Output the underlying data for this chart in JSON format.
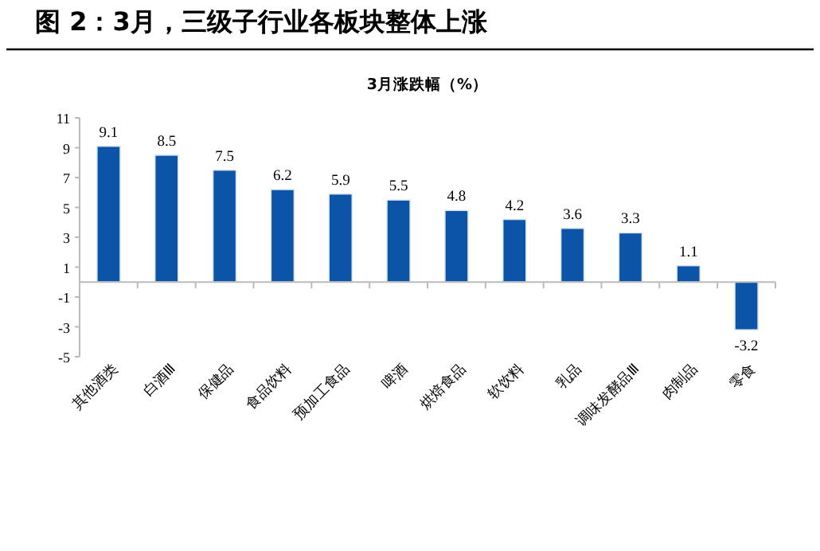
{
  "chart_data": {
    "type": "bar",
    "title": "图 2：3月，三级子行业各板块整体上涨",
    "subtitle": "3月涨跌幅（%）",
    "categories": [
      "其他酒类",
      "白酒Ⅲ",
      "保健品",
      "食品饮料",
      "预加工食品",
      "啤酒",
      "烘焙食品",
      "软饮料",
      "乳品",
      "调味发酵品Ⅲ",
      "肉制品",
      "零食"
    ],
    "values": [
      9.1,
      8.5,
      7.5,
      6.2,
      5.9,
      5.5,
      4.8,
      4.2,
      3.6,
      3.3,
      1.1,
      -3.2
    ],
    "color": "#0b54a8",
    "ylim": [
      -5,
      11
    ],
    "yticks": [
      -5,
      -3,
      -1,
      1,
      3,
      5,
      7,
      9,
      11
    ],
    "data_labels": true,
    "grid": false
  }
}
